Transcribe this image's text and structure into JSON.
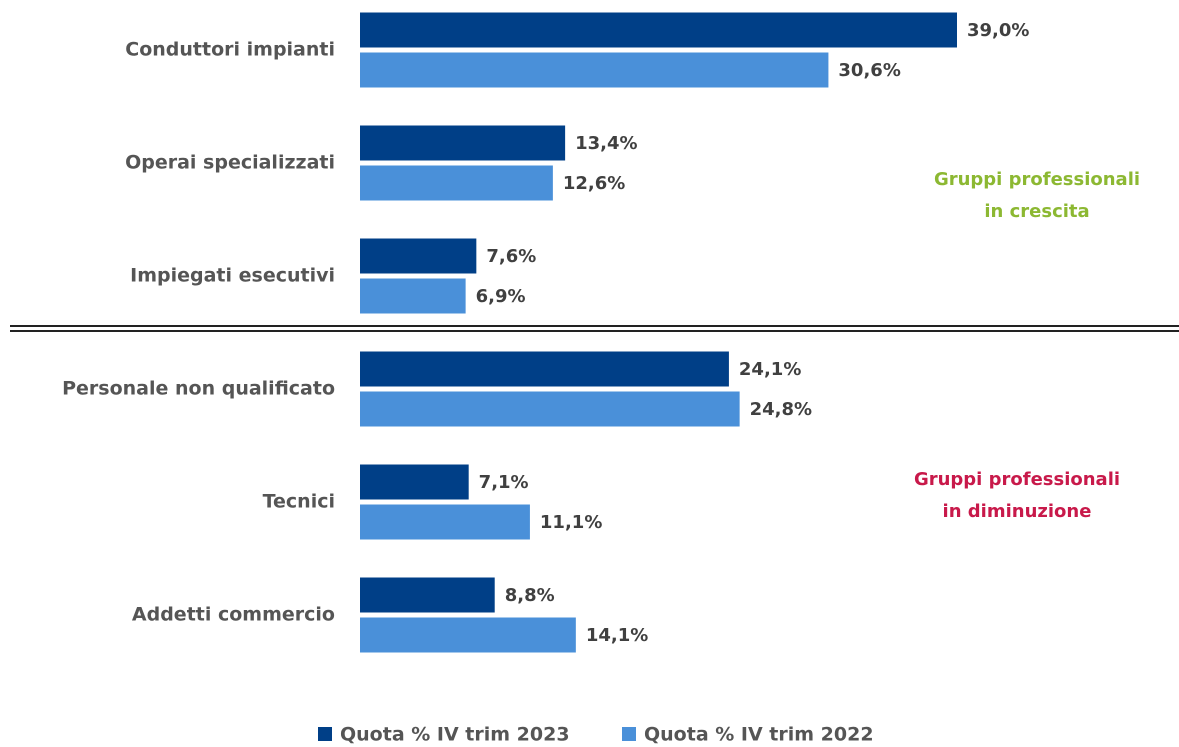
{
  "chart_data": {
    "type": "hbar",
    "categories": [
      "Conduttori impianti",
      "Operai specializzati",
      "Impiegati esecutivi",
      "Personale non qualificato",
      "Tecnici",
      "Addetti commercio"
    ],
    "series": [
      {
        "name": "Quota % IV trim 2023",
        "color": "#003f87",
        "values": [
          39.0,
          13.4,
          7.6,
          24.1,
          7.1,
          8.8
        ],
        "value_labels": [
          "39,0%",
          "13,4%",
          "7,6%",
          "24,1%",
          "7,1%",
          "8,8%"
        ]
      },
      {
        "name": "Quota % IV trim 2022",
        "color": "#4a90d9",
        "values": [
          30.6,
          12.6,
          6.9,
          24.8,
          11.1,
          14.1
        ],
        "value_labels": [
          "30,6%",
          "12,6%",
          "6,9%",
          "24,8%",
          "11,1%",
          "14,1%"
        ]
      }
    ],
    "annotations": [
      {
        "lines": [
          "Gruppi professionali",
          "in crescita"
        ],
        "color": "#8cb832"
      },
      {
        "lines": [
          "Gruppi professionali",
          "in diminuzione"
        ],
        "color": "#c8194a"
      }
    ],
    "legend": "bottom"
  }
}
